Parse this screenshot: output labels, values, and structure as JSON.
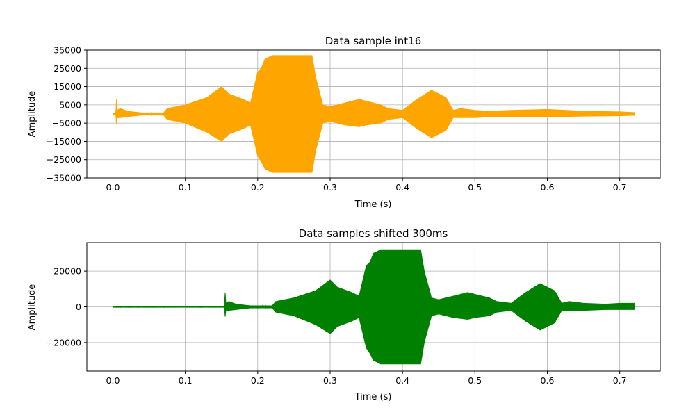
{
  "chart_data": [
    {
      "type": "line",
      "title": "Data sample int16",
      "xlabel": "Time (s)",
      "ylabel": "Amplitude",
      "xlim": [
        -0.036,
        0.756
      ],
      "ylim": [
        -35000,
        35000
      ],
      "xticks": [
        0.0,
        0.1,
        0.2,
        0.3,
        0.4,
        0.5,
        0.6,
        0.7
      ],
      "xtick_labels": [
        "0.0",
        "0.1",
        "0.2",
        "0.3",
        "0.4",
        "0.5",
        "0.6",
        "0.7"
      ],
      "yticks": [
        35000,
        25000,
        15000,
        5000,
        -5000,
        -15000,
        -25000,
        -35000
      ],
      "ytick_labels": [
        "35000",
        "25000",
        "15000",
        "5000",
        "−5000",
        "−15000",
        "−25000",
        "−35000"
      ],
      "grid": true,
      "series": [
        {
          "color": "#ffa500",
          "x": [
            0.0,
            0.004,
            0.005,
            0.006,
            0.01,
            0.02,
            0.04,
            0.06,
            0.07,
            0.075,
            0.1,
            0.13,
            0.15,
            0.16,
            0.18,
            0.19,
            0.2,
            0.205,
            0.21,
            0.22,
            0.24,
            0.26,
            0.275,
            0.28,
            0.29,
            0.3,
            0.32,
            0.34,
            0.35,
            0.37,
            0.38,
            0.4,
            0.41,
            0.42,
            0.44,
            0.46,
            0.47,
            0.48,
            0.5,
            0.52,
            0.55,
            0.6,
            0.65,
            0.7,
            0.72
          ],
          "upper": [
            600,
            600,
            8000,
            2000,
            3000,
            1500,
            600,
            600,
            600,
            3000,
            5000,
            9000,
            15000,
            11000,
            8000,
            6000,
            23000,
            25000,
            30000,
            32000,
            32000,
            32000,
            32000,
            20000,
            5000,
            4000,
            6000,
            8000,
            7000,
            5000,
            3000,
            2000,
            5000,
            8000,
            13000,
            9000,
            2000,
            3000,
            2000,
            1500,
            2000,
            2500,
            1500,
            1200,
            800
          ],
          "lower": [
            -600,
            -600,
            -5500,
            -2000,
            -2000,
            -1500,
            -600,
            -600,
            -600,
            -3000,
            -5000,
            -10000,
            -15000,
            -11000,
            -8000,
            -6000,
            -23000,
            -26000,
            -30000,
            -32000,
            -32000,
            -32000,
            -32000,
            -20000,
            -5000,
            -4000,
            -6000,
            -7000,
            -6000,
            -5000,
            -3000,
            -2000,
            -5000,
            -8000,
            -13000,
            -9000,
            -2000,
            -2000,
            -2000,
            -1500,
            -1500,
            -1500,
            -1200,
            -1000,
            -700
          ]
        }
      ]
    },
    {
      "type": "line",
      "title": "Data samples shifted 300ms",
      "xlabel": "Time (s)",
      "ylabel": "Amplitude",
      "xlim": [
        -0.036,
        0.756
      ],
      "ylim": [
        -36000,
        36000
      ],
      "xticks": [
        0.0,
        0.1,
        0.2,
        0.3,
        0.4,
        0.5,
        0.6,
        0.7
      ],
      "xtick_labels": [
        "0.0",
        "0.1",
        "0.2",
        "0.3",
        "0.4",
        "0.5",
        "0.6",
        "0.7"
      ],
      "yticks": [
        20000,
        0,
        -20000
      ],
      "ytick_labels": [
        "20000",
        "0",
        "−20000"
      ],
      "grid": true,
      "series": [
        {
          "color": "#008000",
          "x": [
            0.0,
            0.15,
            0.154,
            0.155,
            0.156,
            0.16,
            0.17,
            0.19,
            0.21,
            0.22,
            0.225,
            0.25,
            0.28,
            0.3,
            0.31,
            0.33,
            0.34,
            0.35,
            0.355,
            0.36,
            0.37,
            0.39,
            0.41,
            0.425,
            0.43,
            0.44,
            0.45,
            0.47,
            0.49,
            0.5,
            0.52,
            0.53,
            0.55,
            0.56,
            0.57,
            0.59,
            0.61,
            0.62,
            0.63,
            0.65,
            0.68,
            0.7,
            0.72
          ],
          "upper": [
            200,
            200,
            200,
            8000,
            2000,
            3000,
            1500,
            600,
            600,
            600,
            3000,
            5000,
            9000,
            15000,
            11000,
            8000,
            6000,
            23000,
            25000,
            30000,
            32000,
            32000,
            32000,
            32000,
            20000,
            5000,
            4000,
            6000,
            8000,
            7000,
            5000,
            3000,
            2000,
            5000,
            8000,
            13000,
            9000,
            2000,
            3000,
            2000,
            1500,
            2000,
            2000
          ],
          "lower": [
            -200,
            -200,
            -200,
            -5500,
            -2000,
            -2000,
            -1500,
            -600,
            -600,
            -600,
            -3000,
            -5000,
            -10000,
            -15000,
            -11000,
            -8000,
            -6000,
            -23000,
            -26000,
            -30000,
            -32000,
            -32000,
            -32000,
            -32000,
            -20000,
            -5000,
            -4000,
            -6000,
            -7000,
            -6000,
            -5000,
            -3000,
            -2000,
            -5000,
            -8000,
            -13000,
            -9000,
            -2000,
            -2000,
            -2000,
            -1500,
            -1500,
            -1500
          ]
        }
      ]
    }
  ]
}
